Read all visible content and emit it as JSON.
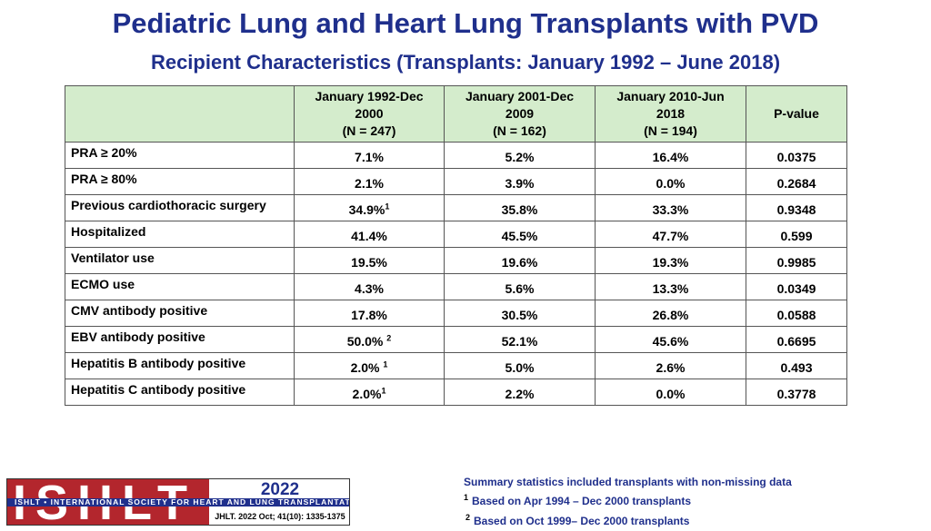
{
  "title": "Pediatric Lung and Heart Lung Transplants with PVD",
  "subtitle": "Recipient Characteristics (Transplants: January 1992 – June 2018)",
  "table": {
    "headers": [
      "",
      "January 1992-Dec 2000 (N = 247)",
      "January 2001-Dec 2009 (N = 162)",
      "January 2010-Jun 2018 (N = 194)",
      "P-value"
    ],
    "header_lines": [
      [],
      [
        "January 1992-Dec",
        "2000",
        "(N = 247)"
      ],
      [
        "January 2001-Dec",
        "2009",
        "(N = 162)"
      ],
      [
        "January 2010-Jun",
        "2018",
        "(N = 194)"
      ],
      [
        "P-value"
      ]
    ],
    "rows": [
      {
        "label": "PRA ≥ 20%",
        "c1": "7.1%",
        "c1_sup": "",
        "c2": "5.2%",
        "c3": "16.4%",
        "p": "0.0375"
      },
      {
        "label": "PRA ≥ 80%",
        "c1": "2.1%",
        "c1_sup": "",
        "c2": "3.9%",
        "c3": "0.0%",
        "p": "0.2684"
      },
      {
        "label": "Previous cardiothoracic surgery",
        "c1": "34.9%",
        "c1_sup": "1",
        "c2": "35.8%",
        "c3": "33.3%",
        "p": "0.9348"
      },
      {
        "label": "Hospitalized",
        "c1": "41.4%",
        "c1_sup": "",
        "c2": "45.5%",
        "c3": "47.7%",
        "p": "0.599"
      },
      {
        "label": "Ventilator use",
        "c1": "19.5%",
        "c1_sup": "",
        "c2": "19.6%",
        "c3": "19.3%",
        "p": "0.9985"
      },
      {
        "label": "ECMO use",
        "c1": "4.3%",
        "c1_sup": "",
        "c2": "5.6%",
        "c3": "13.3%",
        "p": "0.0349"
      },
      {
        "label": "CMV antibody positive",
        "c1": "17.8%",
        "c1_sup": "",
        "c2": "30.5%",
        "c3": "26.8%",
        "p": "0.0588"
      },
      {
        "label": "EBV antibody positive",
        "c1": "50.0% ",
        "c1_sup": "2",
        "c2": "52.1%",
        "c3": "45.6%",
        "p": "0.6695"
      },
      {
        "label": "Hepatitis B antibody positive",
        "c1": "2.0% ",
        "c1_sup": "1",
        "c2": "5.0%",
        "c3": "2.6%",
        "p": "0.493"
      },
      {
        "label": "Hepatitis C antibody positive",
        "c1": "2.0%",
        "c1_sup": "1",
        "c2": "2.2%",
        "c3": "0.0%",
        "p": "0.3778"
      }
    ]
  },
  "footnotes": {
    "summary": "Summary statistics included transplants with non-missing data",
    "note1_marker": "1",
    "note1": "Based on Apr 1994 – Dec 2000 transplants",
    "note2_marker": "2",
    "note2": "Based on Oct 1999– Dec 2000 transplants"
  },
  "logo": {
    "letters": "ISHLT",
    "band_text": "ISHLT • INTERNATIONAL SOCIETY FOR HEART AND LUNG TRANSPLANTATION",
    "year": "2022",
    "citation": "JHLT. 2022 Oct; 41(10): 1335-1375",
    "colors": {
      "red": "#b3262d",
      "navy": "#1f2f8c"
    }
  },
  "colors": {
    "title": "#1f2f8c",
    "header_bg": "#d4eccc"
  }
}
